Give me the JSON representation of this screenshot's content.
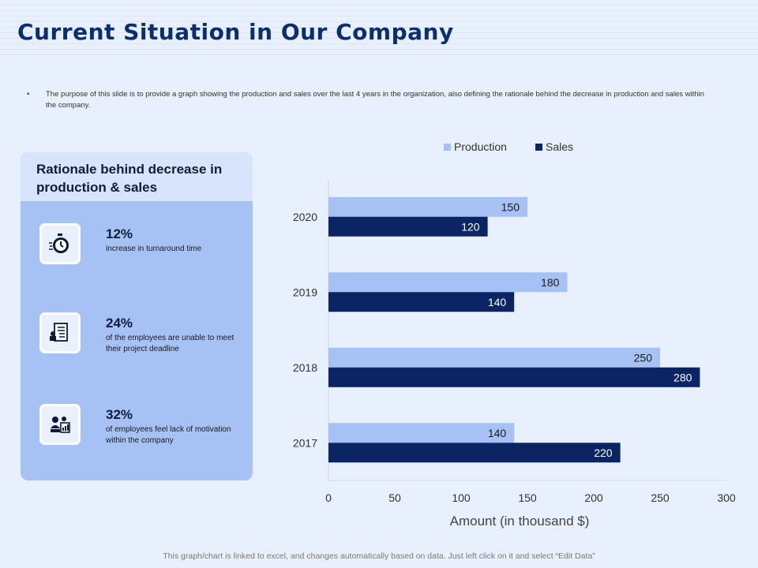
{
  "title": "Current Situation in Our Company",
  "bullet": "The purpose of this slide is to provide a graph showing the production and sales over the last 4 years in the organization, also defining the rationale behind the decrease in production and sales within the company.",
  "panel": {
    "heading": "Rationale behind decrease in production & sales",
    "items": [
      {
        "pct": "12%",
        "text": "increase in turnaround time",
        "icon": "stopwatch-icon"
      },
      {
        "pct": "24%",
        "text": "of the employees are unable to meet their project deadline",
        "icon": "document-icon"
      },
      {
        "pct": "32%",
        "text": "of employees feel lack of motivation within the company",
        "icon": "team-icon"
      }
    ]
  },
  "footer": "This graph/chart is linked to excel, and changes automatically based on data. Just left click on it and select “Edit Data”",
  "colors": {
    "production": "#a6c1f4",
    "sales": "#0b2464"
  },
  "chart_data": {
    "type": "bar",
    "orientation": "horizontal",
    "categories": [
      "2020",
      "2019",
      "2018",
      "2017"
    ],
    "series": [
      {
        "name": "Production",
        "values": [
          150,
          180,
          250,
          140
        ]
      },
      {
        "name": "Sales",
        "values": [
          120,
          140,
          280,
          220
        ]
      }
    ],
    "xlabel": "Amount (in thousand $)",
    "ylabel": "",
    "xlim": [
      0,
      300
    ],
    "xticks": [
      "0",
      "50",
      "100",
      "150",
      "200",
      "250",
      "300"
    ],
    "legend": "top"
  }
}
